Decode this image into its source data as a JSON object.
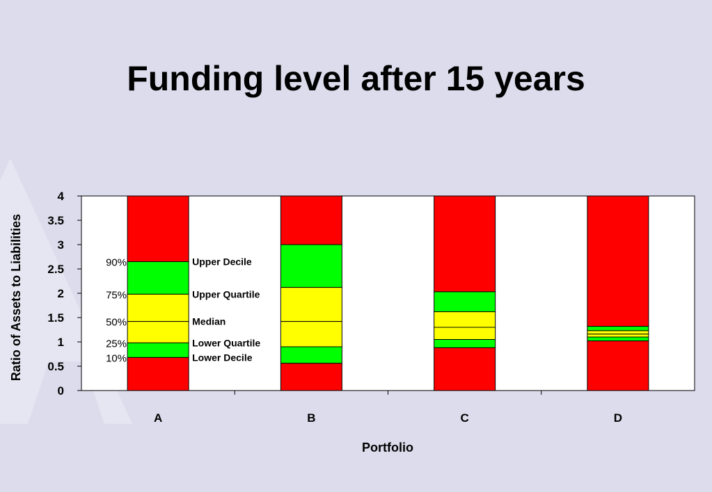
{
  "slide": {
    "title": "Funding level after 15 years",
    "background": "#dcdcec"
  },
  "chart_data": {
    "type": "bar",
    "subtype": "stacked-percentile-range",
    "categories": [
      "A",
      "B",
      "C",
      "D"
    ],
    "xlabel": "Portfolio",
    "ylabel": "Ratio of Assets to Liabilities",
    "ylim": [
      0,
      4
    ],
    "yticks": [
      "0",
      "0.5",
      "1",
      "1.5",
      "2",
      "2.5",
      "3",
      "3.5",
      "4"
    ],
    "grid": false,
    "colors": {
      "tail": "#ff0000",
      "decile_band": "#00ff00",
      "quartile_band": "#ffff00",
      "edge": "#000000"
    },
    "percentiles": [
      {
        "name": "Upper Decile",
        "percent": "90%",
        "values": [
          2.65,
          3.0,
          2.03,
          1.32
        ]
      },
      {
        "name": "Upper Quartile",
        "percent": "75%",
        "values": [
          1.98,
          2.12,
          1.62,
          1.23
        ]
      },
      {
        "name": "Median",
        "percent": "50%",
        "values": [
          1.42,
          1.42,
          1.3,
          1.16
        ]
      },
      {
        "name": "Lower Quartile",
        "percent": "25%",
        "values": [
          0.98,
          0.9,
          1.05,
          1.1
        ]
      },
      {
        "name": "Lower Decile",
        "percent": "10%",
        "values": [
          0.68,
          0.56,
          0.88,
          1.02
        ]
      }
    ],
    "bar_top": 4
  }
}
